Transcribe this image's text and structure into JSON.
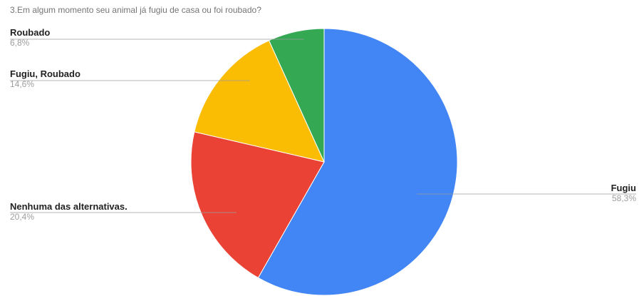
{
  "chart_data": {
    "type": "pie",
    "title": "3.Em algum momento seu animal já fugiu de casa ou foi roubado?",
    "slices": [
      {
        "label": "Fugiu",
        "value": 58.3,
        "display": "58,3%",
        "color": "#4285f4"
      },
      {
        "label": "Nenhuma das alternativas.",
        "value": 20.4,
        "display": "20,4%",
        "color": "#ea4335"
      },
      {
        "label": "Fugiu, Roubado",
        "value": 14.6,
        "display": "14,6%",
        "color": "#fbbc04"
      },
      {
        "label": "Roubado",
        "value": 6.8,
        "display": "6,8%",
        "color": "#34a853"
      }
    ],
    "start_angle": "top",
    "direction": "clockwise",
    "legend": "none"
  }
}
